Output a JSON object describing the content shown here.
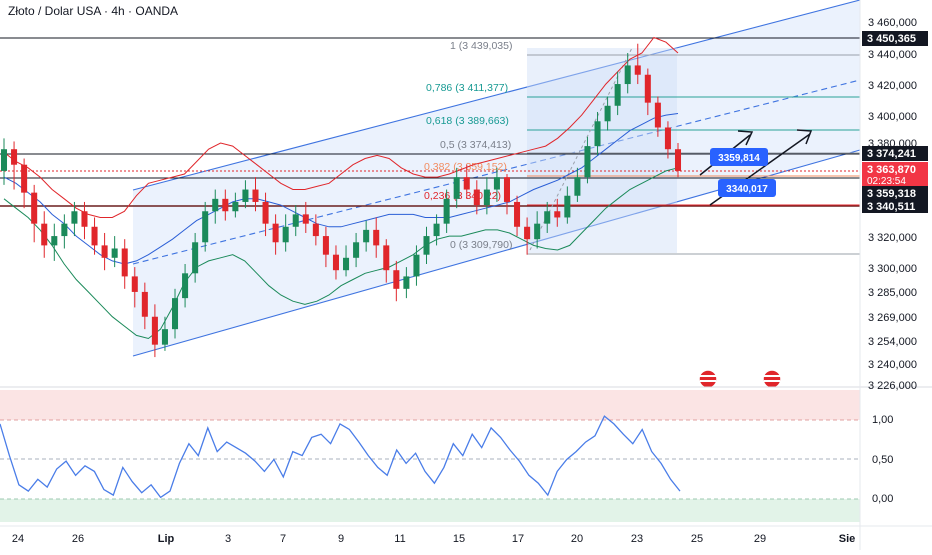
{
  "title": "Złoto / Dolar USA · 4h · OANDA",
  "colors": {
    "background": "#ffffff",
    "channel_fill": "#dbe8fb",
    "channel_line": "#3f74e0",
    "bollinger_upper": "#e0262b",
    "bollinger_mid": "#2b5fd6",
    "bollinger_lower": "#1b8a5a",
    "candle_up": "#1b8a5a",
    "candle_down": "#e0262b",
    "rsi_line": "#4a7de8",
    "rsi_upper_band": "#fbe4e4",
    "rsi_lower_band": "#e2f3e8",
    "label_dark": "#131722",
    "label_blue": "#2962ff",
    "fib_text": "#7a7f8a",
    "fib_0618_text": "#179a93",
    "fib_0382_text": "#f28c60",
    "fib_0236_text": "#e0262b"
  },
  "chart_data": [
    {
      "type": "candlestick",
      "timeframe": "4h",
      "x_tick_labels": [
        "24",
        "26",
        "Lip",
        "3",
        "7",
        "9",
        "11",
        "15",
        "17",
        "20",
        "23",
        "25",
        "29",
        "Sie"
      ],
      "y_tick_labels": [
        "3 460,000",
        "3 440,000",
        "3 420,000",
        "3 400,000",
        "3 380,000",
        "3 320,000",
        "3 300,000",
        "3 285,000",
        "3 269,000",
        "3 254,000",
        "3 240,000",
        "3 226,000"
      ],
      "price_labels": [
        {
          "value": "3 450,365",
          "style": "dark"
        },
        {
          "value": "3 374,241",
          "style": "dark"
        },
        {
          "value": "3 363,870",
          "sub": "02:23:54",
          "style": "red"
        },
        {
          "value": "3 359,318",
          "style": "dark"
        },
        {
          "value": "3 340,511",
          "style": "dark"
        }
      ],
      "fibonacci": [
        {
          "level": "1",
          "price": "3 439,035",
          "label": "1 (3 439,035)"
        },
        {
          "level": "0.786",
          "price": "3 411,377",
          "label": "0,786 (3 411,377)"
        },
        {
          "level": "0.618",
          "price": "3 389,663",
          "label": "0,618 (3 389,663)"
        },
        {
          "level": "0.5",
          "price": "3 374,413",
          "label": "0,5 (3 374,413)"
        },
        {
          "level": "0.382",
          "price": "3 359,152",
          "label": "0,382 (3 359,152)"
        },
        {
          "level": "0.236",
          "price": "3 340,22",
          "label": "0,236 (3 340,22)"
        },
        {
          "level": "0",
          "price": "3 309,790",
          "label": "0 (3 309,790)"
        }
      ],
      "targets": [
        {
          "label": "3359,814"
        },
        {
          "label": "3340,017"
        }
      ],
      "bollinger": {
        "upper": [
          3376,
          3370,
          3366,
          3360,
          3352,
          3346,
          3340,
          3336,
          3334,
          3334,
          3338,
          3348,
          3356,
          3358,
          3360,
          3362,
          3370,
          3378,
          3382,
          3380,
          3374,
          3368,
          3362,
          3356,
          3352,
          3352,
          3354,
          3356,
          3362,
          3368,
          3372,
          3374,
          3372,
          3366,
          3362,
          3360,
          3360,
          3362,
          3365,
          3368,
          3370,
          3372,
          3374,
          3376,
          3378,
          3380,
          3385,
          3392,
          3400,
          3410,
          3420,
          3428,
          3436,
          3440,
          3450,
          3447,
          3440
        ],
        "mid": [
          3360,
          3356,
          3350,
          3344,
          3336,
          3330,
          3322,
          3316,
          3310,
          3306,
          3304,
          3306,
          3310,
          3315,
          3320,
          3326,
          3332,
          3336,
          3340,
          3344,
          3346,
          3346,
          3344,
          3342,
          3338,
          3334,
          3330,
          3328,
          3328,
          3330,
          3332,
          3334,
          3336,
          3336,
          3336,
          3334,
          3334,
          3334,
          3336,
          3338,
          3340,
          3342,
          3344,
          3348,
          3352,
          3355,
          3358,
          3362,
          3366,
          3372,
          3378,
          3384,
          3390,
          3394,
          3398,
          3400,
          3401
        ],
        "lower": [
          3346,
          3340,
          3334,
          3326,
          3316,
          3304,
          3294,
          3286,
          3278,
          3270,
          3264,
          3258,
          3256,
          3262,
          3276,
          3292,
          3302,
          3306,
          3308,
          3310,
          3306,
          3298,
          3290,
          3284,
          3280,
          3278,
          3280,
          3284,
          3290,
          3294,
          3298,
          3300,
          3302,
          3306,
          3310,
          3316,
          3320,
          3322,
          3322,
          3324,
          3326,
          3326,
          3324,
          3320,
          3316,
          3314,
          3313,
          3316,
          3324,
          3332,
          3340,
          3346,
          3352,
          3356,
          3360,
          3364,
          3366
        ]
      },
      "candles": [
        {
          "o": 3364,
          "c": 3378,
          "h": 3385,
          "l": 3355
        },
        {
          "o": 3378,
          "c": 3368,
          "h": 3383,
          "l": 3352
        },
        {
          "o": 3368,
          "c": 3350,
          "h": 3372,
          "l": 3340
        },
        {
          "o": 3350,
          "c": 3330,
          "h": 3355,
          "l": 3318
        },
        {
          "o": 3330,
          "c": 3316,
          "h": 3338,
          "l": 3308
        },
        {
          "o": 3316,
          "c": 3322,
          "h": 3330,
          "l": 3306
        },
        {
          "o": 3322,
          "c": 3330,
          "h": 3336,
          "l": 3314
        },
        {
          "o": 3330,
          "c": 3338,
          "h": 3344,
          "l": 3322
        },
        {
          "o": 3338,
          "c": 3328,
          "h": 3344,
          "l": 3320
        },
        {
          "o": 3328,
          "c": 3316,
          "h": 3334,
          "l": 3310
        },
        {
          "o": 3316,
          "c": 3308,
          "h": 3324,
          "l": 3300
        },
        {
          "o": 3308,
          "c": 3314,
          "h": 3322,
          "l": 3302
        },
        {
          "o": 3314,
          "c": 3296,
          "h": 3320,
          "l": 3288
        },
        {
          "o": 3296,
          "c": 3286,
          "h": 3302,
          "l": 3276
        },
        {
          "o": 3286,
          "c": 3270,
          "h": 3292,
          "l": 3262
        },
        {
          "o": 3270,
          "c": 3252,
          "h": 3278,
          "l": 3244
        },
        {
          "o": 3252,
          "c": 3262,
          "h": 3270,
          "l": 3248
        },
        {
          "o": 3262,
          "c": 3282,
          "h": 3288,
          "l": 3256
        },
        {
          "o": 3282,
          "c": 3298,
          "h": 3304,
          "l": 3276
        },
        {
          "o": 3298,
          "c": 3318,
          "h": 3324,
          "l": 3292
        },
        {
          "o": 3318,
          "c": 3338,
          "h": 3344,
          "l": 3312
        },
        {
          "o": 3338,
          "c": 3346,
          "h": 3352,
          "l": 3330
        },
        {
          "o": 3346,
          "c": 3338,
          "h": 3352,
          "l": 3332
        },
        {
          "o": 3338,
          "c": 3344,
          "h": 3350,
          "l": 3334
        },
        {
          "o": 3344,
          "c": 3352,
          "h": 3358,
          "l": 3340
        },
        {
          "o": 3352,
          "c": 3344,
          "h": 3360,
          "l": 3338
        },
        {
          "o": 3344,
          "c": 3330,
          "h": 3350,
          "l": 3322
        },
        {
          "o": 3330,
          "c": 3318,
          "h": 3336,
          "l": 3310
        },
        {
          "o": 3318,
          "c": 3328,
          "h": 3336,
          "l": 3312
        },
        {
          "o": 3328,
          "c": 3336,
          "h": 3342,
          "l": 3322
        },
        {
          "o": 3336,
          "c": 3330,
          "h": 3344,
          "l": 3324
        },
        {
          "o": 3330,
          "c": 3322,
          "h": 3336,
          "l": 3316
        },
        {
          "o": 3322,
          "c": 3310,
          "h": 3328,
          "l": 3302
        },
        {
          "o": 3310,
          "c": 3300,
          "h": 3316,
          "l": 3294
        },
        {
          "o": 3300,
          "c": 3308,
          "h": 3316,
          "l": 3296
        },
        {
          "o": 3308,
          "c": 3318,
          "h": 3324,
          "l": 3302
        },
        {
          "o": 3318,
          "c": 3326,
          "h": 3332,
          "l": 3312
        },
        {
          "o": 3326,
          "c": 3316,
          "h": 3334,
          "l": 3308
        },
        {
          "o": 3316,
          "c": 3300,
          "h": 3320,
          "l": 3292
        },
        {
          "o": 3300,
          "c": 3288,
          "h": 3306,
          "l": 3280
        },
        {
          "o": 3288,
          "c": 3296,
          "h": 3302,
          "l": 3282
        },
        {
          "o": 3296,
          "c": 3310,
          "h": 3316,
          "l": 3290
        },
        {
          "o": 3310,
          "c": 3322,
          "h": 3328,
          "l": 3304
        },
        {
          "o": 3322,
          "c": 3330,
          "h": 3336,
          "l": 3316
        },
        {
          "o": 3330,
          "c": 3346,
          "h": 3352,
          "l": 3324
        },
        {
          "o": 3346,
          "c": 3360,
          "h": 3366,
          "l": 3340
        },
        {
          "o": 3360,
          "c": 3352,
          "h": 3368,
          "l": 3346
        },
        {
          "o": 3352,
          "c": 3342,
          "h": 3358,
          "l": 3336
        },
        {
          "o": 3342,
          "c": 3352,
          "h": 3360,
          "l": 3336
        },
        {
          "o": 3352,
          "c": 3360,
          "h": 3366,
          "l": 3344
        },
        {
          "o": 3360,
          "c": 3344,
          "h": 3362,
          "l": 3336
        },
        {
          "o": 3344,
          "c": 3328,
          "h": 3348,
          "l": 3322
        },
        {
          "o": 3328,
          "c": 3320,
          "h": 3334,
          "l": 3310
        },
        {
          "o": 3320,
          "c": 3330,
          "h": 3338,
          "l": 3314
        },
        {
          "o": 3330,
          "c": 3338,
          "h": 3344,
          "l": 3324
        },
        {
          "o": 3338,
          "c": 3334,
          "h": 3346,
          "l": 3328
        },
        {
          "o": 3334,
          "c": 3348,
          "h": 3354,
          "l": 3330
        },
        {
          "o": 3348,
          "c": 3360,
          "h": 3366,
          "l": 3344
        },
        {
          "o": 3360,
          "c": 3380,
          "h": 3386,
          "l": 3356
        },
        {
          "o": 3380,
          "c": 3396,
          "h": 3402,
          "l": 3374
        },
        {
          "o": 3396,
          "c": 3406,
          "h": 3412,
          "l": 3390
        },
        {
          "o": 3406,
          "c": 3420,
          "h": 3428,
          "l": 3400
        },
        {
          "o": 3420,
          "c": 3432,
          "h": 3440,
          "l": 3414
        },
        {
          "o": 3432,
          "c": 3426,
          "h": 3446,
          "l": 3420
        },
        {
          "o": 3426,
          "c": 3408,
          "h": 3430,
          "l": 3400
        },
        {
          "o": 3408,
          "c": 3392,
          "h": 3412,
          "l": 3386
        },
        {
          "o": 3392,
          "c": 3378,
          "h": 3396,
          "l": 3372
        },
        {
          "o": 3378,
          "c": 3364,
          "h": 3382,
          "l": 3360
        }
      ]
    },
    {
      "type": "line",
      "indicator": "RSI-like oscillator",
      "y_tick_labels": [
        "1,00",
        "0,50",
        "0,00"
      ],
      "series": [
        {
          "values": [
            0.95,
            0.55,
            0.18,
            0.1,
            0.25,
            0.15,
            0.38,
            0.48,
            0.3,
            0.42,
            0.35,
            0.12,
            0.05,
            0.4,
            0.22,
            0.08,
            0.18,
            0.02,
            0.1,
            0.45,
            0.7,
            0.55,
            0.9,
            0.6,
            0.72,
            0.65,
            0.58,
            0.48,
            0.35,
            0.5,
            0.28,
            0.6,
            0.55,
            0.78,
            0.82,
            0.7,
            0.95,
            0.88,
            0.72,
            0.55,
            0.4,
            0.3,
            0.62,
            0.45,
            0.58,
            0.35,
            0.2,
            0.4,
            0.7,
            0.55,
            0.82,
            0.65,
            0.9,
            0.78,
            0.62,
            0.48,
            0.3,
            0.2,
            0.05,
            0.35,
            0.5,
            0.6,
            0.72,
            0.8,
            1.05,
            0.95,
            0.82,
            0.7,
            0.88,
            0.6,
            0.45,
            0.25,
            0.1
          ]
        }
      ]
    }
  ]
}
